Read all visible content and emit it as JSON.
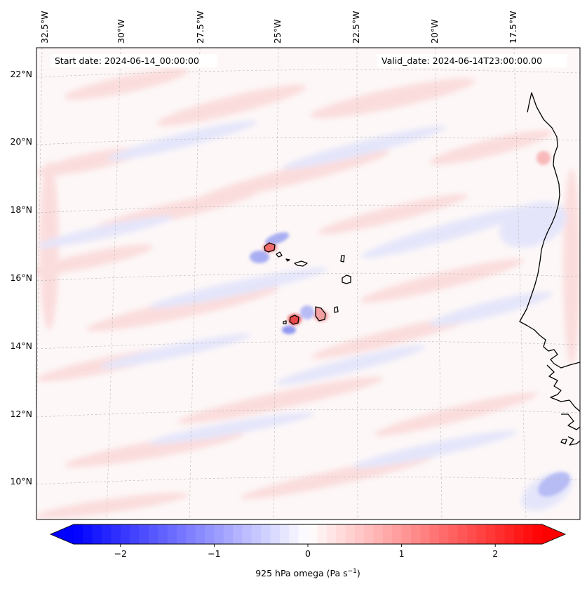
{
  "map": {
    "start_label": "Start date: 2024-06-14_00:00:00",
    "valid_label": "Valid_date: 2024-06-14T23:00:00.00",
    "lon_labels": [
      "32.5°W",
      "30°W",
      "27.5°W",
      "25°W",
      "22.5°W",
      "20°W",
      "17.5°W"
    ],
    "lat_labels": [
      "22°N",
      "20°N",
      "18°N",
      "16°N",
      "14°N",
      "12°N",
      "10°N"
    ],
    "colormap": "bwr",
    "gridlines": true
  },
  "colorbar": {
    "ticks": [
      "−2",
      "−1",
      "0",
      "1",
      "2"
    ],
    "tick_values": [
      -2,
      -1,
      0,
      1,
      2
    ],
    "range": [
      -2.5,
      2.5
    ],
    "label_prefix": "925 hPa omega (Pa s",
    "label_exp": "−1",
    "label_suffix": ")",
    "min_color": "#0000ff",
    "mid_color": "#ffffff",
    "max_color": "#ff0000"
  }
}
